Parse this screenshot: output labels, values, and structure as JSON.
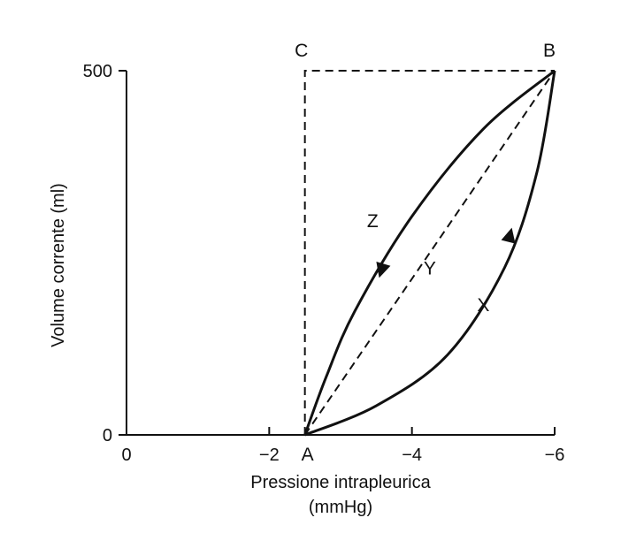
{
  "chart_data": {
    "type": "line",
    "title": "",
    "xlabel_line1": "Pressione intrapleurica",
    "xlabel_line2": "(mmHg)",
    "ylabel": "Volume corrente (ml)",
    "xlim": [
      0,
      -6
    ],
    "ylim": [
      0,
      500
    ],
    "grid": false,
    "x_ticks": [
      {
        "value": 0,
        "label": "0"
      },
      {
        "value": -2,
        "label": "−2"
      },
      {
        "value": -4,
        "label": "−4"
      },
      {
        "value": -6,
        "label": "−6"
      }
    ],
    "y_ticks": [
      {
        "value": 0,
        "label": "0"
      },
      {
        "value": 500,
        "label": "500"
      }
    ],
    "points": [
      {
        "name": "A",
        "x": -2.5,
        "y": 0
      },
      {
        "name": "B",
        "x": -6,
        "y": 500
      },
      {
        "name": "C",
        "x": -2.5,
        "y": 500
      }
    ],
    "series": [
      {
        "name": "X",
        "style": "solid",
        "direction": "A to B",
        "x": [
          -2.5,
          -3.5,
          -4.5,
          -5.3,
          -5.75,
          -6
        ],
        "y": [
          0,
          40,
          110,
          230,
          360,
          500
        ]
      },
      {
        "name": "Z",
        "style": "solid",
        "direction": "B to A",
        "x": [
          -6,
          -5.0,
          -4.0,
          -3.2,
          -2.8,
          -2.5
        ],
        "y": [
          500,
          420,
          300,
          170,
          80,
          0
        ]
      },
      {
        "name": "Y",
        "style": "dashed",
        "x": [
          -2.5,
          -6
        ],
        "y": [
          0,
          500
        ]
      },
      {
        "name": "",
        "style": "dashed",
        "x": [
          -2.5,
          -2.5,
          -6
        ],
        "y": [
          0,
          500,
          500
        ]
      }
    ],
    "labels": [
      {
        "text": "X",
        "x": -5.0,
        "y": 170
      },
      {
        "text": "Y",
        "x": -4.25,
        "y": 220
      },
      {
        "text": "Z",
        "x": -3.45,
        "y": 285
      }
    ],
    "arrows": [
      {
        "series": "X",
        "x": -5.35,
        "y": 265,
        "direction": "up"
      },
      {
        "series": "Z",
        "x": -3.6,
        "y": 235,
        "direction": "down"
      }
    ]
  }
}
